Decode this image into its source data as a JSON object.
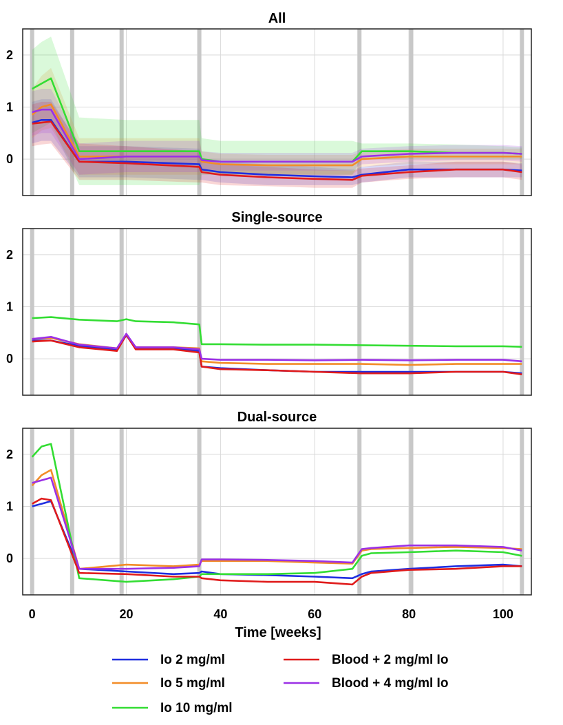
{
  "chart_data": {
    "type": "line",
    "xlabel": "Time [weeks]",
    "xlim": [
      -2,
      106
    ],
    "xticks": [
      0,
      20,
      40,
      60,
      80,
      100
    ],
    "grid": true,
    "legend": "bottom",
    "vertical_markers": [
      0,
      8.5,
      19,
      35.5,
      69.5,
      80.5,
      104
    ],
    "series_meta": [
      {
        "name": "Io 2 mg/ml",
        "color": "#1f2ee0"
      },
      {
        "name": "Io 5 mg/ml",
        "color": "#f28c28"
      },
      {
        "name": "Io 10 mg/ml",
        "color": "#33dd33"
      },
      {
        "name": "Blood + 2 mg/ml Io",
        "color": "#e01b1b"
      },
      {
        "name": "Blood + 4 mg/ml Io",
        "color": "#9b30e6"
      }
    ],
    "panels": [
      {
        "title": "All",
        "ylim": [
          -0.7,
          2.5
        ],
        "yticks": [
          0,
          1,
          2
        ],
        "series": [
          {
            "name": "Io 2 mg/ml",
            "x": [
              0,
              2,
              4,
              10,
              20,
              35.5,
              36,
              40,
              50,
              60,
              68,
              70,
              80,
              90,
              100,
              104
            ],
            "values": [
              0.7,
              0.75,
              0.75,
              -0.05,
              -0.05,
              -0.1,
              -0.2,
              -0.25,
              -0.3,
              -0.33,
              -0.35,
              -0.3,
              -0.2,
              -0.2,
              -0.2,
              -0.22
            ],
            "lower": [
              0.3,
              0.35,
              0.35,
              -0.35,
              -0.35,
              -0.4,
              -0.4,
              -0.45,
              -0.5,
              -0.5,
              -0.5,
              -0.45,
              -0.35,
              -0.35,
              -0.35,
              -0.35
            ],
            "upper": [
              1.1,
              1.15,
              1.15,
              0.25,
              0.25,
              0.2,
              0.0,
              -0.05,
              -0.1,
              -0.15,
              -0.2,
              -0.15,
              -0.05,
              -0.05,
              -0.05,
              -0.08
            ]
          },
          {
            "name": "Io 5 mg/ml",
            "x": [
              0,
              2,
              4,
              10,
              20,
              35.5,
              36,
              40,
              50,
              60,
              68,
              70,
              80,
              90,
              100,
              104
            ],
            "values": [
              0.85,
              1.0,
              1.05,
              0.05,
              0.05,
              0.05,
              -0.05,
              -0.1,
              -0.12,
              -0.12,
              -0.12,
              0.0,
              0.05,
              0.05,
              0.05,
              0.05
            ],
            "lower": [
              0.4,
              0.55,
              0.6,
              -0.3,
              -0.3,
              -0.3,
              -0.25,
              -0.3,
              -0.3,
              -0.3,
              -0.3,
              -0.15,
              -0.1,
              -0.1,
              -0.1,
              -0.1
            ],
            "upper": [
              1.35,
              1.6,
              1.75,
              0.4,
              0.4,
              0.4,
              0.15,
              0.1,
              0.08,
              0.08,
              0.08,
              0.15,
              0.2,
              0.2,
              0.2,
              0.2
            ]
          },
          {
            "name": "Io 10 mg/ml",
            "x": [
              0,
              2,
              4,
              10,
              20,
              35.5,
              36,
              40,
              50,
              60,
              68,
              70,
              80,
              90,
              100,
              104
            ],
            "values": [
              1.35,
              1.45,
              1.55,
              0.15,
              0.15,
              0.15,
              0.0,
              -0.05,
              -0.05,
              -0.05,
              -0.05,
              0.15,
              0.15,
              0.12,
              0.12,
              0.1
            ],
            "lower": [
              0.5,
              0.6,
              0.7,
              -0.5,
              -0.5,
              -0.5,
              -0.3,
              -0.3,
              -0.3,
              -0.3,
              -0.3,
              0.0,
              0.0,
              0.0,
              0.0,
              0.0
            ],
            "upper": [
              2.1,
              2.25,
              2.35,
              0.8,
              0.75,
              0.75,
              0.4,
              0.35,
              0.35,
              0.35,
              0.35,
              0.3,
              0.3,
              0.28,
              0.25,
              0.22
            ]
          },
          {
            "name": "Blood + 2 mg/ml Io",
            "x": [
              0,
              2,
              4,
              10,
              20,
              35.5,
              36,
              40,
              50,
              60,
              68,
              70,
              80,
              90,
              100,
              104
            ],
            "values": [
              0.68,
              0.7,
              0.72,
              -0.05,
              -0.08,
              -0.15,
              -0.25,
              -0.3,
              -0.35,
              -0.38,
              -0.4,
              -0.32,
              -0.25,
              -0.2,
              -0.2,
              -0.25
            ],
            "lower": [
              0.25,
              0.28,
              0.3,
              -0.4,
              -0.4,
              -0.45,
              -0.45,
              -0.5,
              -0.52,
              -0.55,
              -0.55,
              -0.45,
              -0.38,
              -0.35,
              -0.35,
              -0.4
            ],
            "upper": [
              1.05,
              1.1,
              1.1,
              0.3,
              0.25,
              0.15,
              -0.05,
              -0.1,
              -0.15,
              -0.2,
              -0.22,
              -0.18,
              -0.12,
              -0.05,
              -0.05,
              -0.1
            ]
          },
          {
            "name": "Blood + 4 mg/ml Io",
            "x": [
              0,
              2,
              4,
              10,
              20,
              35.5,
              36,
              40,
              50,
              60,
              68,
              70,
              80,
              90,
              100,
              104
            ],
            "values": [
              0.9,
              0.95,
              0.95,
              0.0,
              0.05,
              0.05,
              -0.02,
              -0.05,
              -0.05,
              -0.05,
              -0.05,
              0.05,
              0.1,
              0.12,
              0.12,
              0.1
            ],
            "lower": [
              0.45,
              0.5,
              0.5,
              -0.3,
              -0.25,
              -0.25,
              -0.2,
              -0.22,
              -0.22,
              -0.22,
              -0.22,
              -0.1,
              -0.05,
              -0.03,
              -0.03,
              -0.05
            ],
            "upper": [
              1.3,
              1.35,
              1.35,
              0.3,
              0.35,
              0.35,
              0.15,
              0.12,
              0.12,
              0.12,
              0.12,
              0.2,
              0.25,
              0.27,
              0.27,
              0.25
            ]
          }
        ]
      },
      {
        "title": "Single-source",
        "ylim": [
          -0.7,
          2.5
        ],
        "yticks": [
          0,
          1,
          2
        ],
        "series": [
          {
            "name": "Io 2 mg/ml",
            "x": [
              0,
              4,
              10,
              18,
              20,
              22,
              30,
              35.5,
              36,
              40,
              50,
              60,
              70,
              80,
              90,
              100,
              104
            ],
            "values": [
              0.35,
              0.35,
              0.25,
              0.18,
              0.45,
              0.2,
              0.2,
              0.15,
              -0.15,
              -0.18,
              -0.22,
              -0.25,
              -0.25,
              -0.25,
              -0.25,
              -0.25,
              -0.28
            ]
          },
          {
            "name": "Io 5 mg/ml",
            "x": [
              0,
              4,
              10,
              18,
              20,
              22,
              30,
              35.5,
              36,
              40,
              50,
              60,
              70,
              80,
              90,
              100,
              104
            ],
            "values": [
              0.38,
              0.4,
              0.28,
              0.2,
              0.47,
              0.22,
              0.22,
              0.2,
              -0.05,
              -0.08,
              -0.1,
              -0.1,
              -0.1,
              -0.12,
              -0.1,
              -0.1,
              -0.1
            ]
          },
          {
            "name": "Io 10 mg/ml",
            "x": [
              0,
              4,
              10,
              18,
              20,
              22,
              30,
              35.5,
              36,
              40,
              50,
              60,
              70,
              80,
              90,
              100,
              104
            ],
            "values": [
              0.78,
              0.8,
              0.75,
              0.72,
              0.76,
              0.72,
              0.7,
              0.66,
              0.28,
              0.28,
              0.27,
              0.27,
              0.26,
              0.25,
              0.24,
              0.24,
              0.23
            ]
          },
          {
            "name": "Blood + 2 mg/ml Io",
            "x": [
              0,
              4,
              10,
              18,
              20,
              22,
              30,
              35.5,
              36,
              40,
              50,
              60,
              70,
              80,
              90,
              100,
              104
            ],
            "values": [
              0.33,
              0.35,
              0.22,
              0.15,
              0.46,
              0.18,
              0.18,
              0.12,
              -0.15,
              -0.2,
              -0.22,
              -0.25,
              -0.28,
              -0.28,
              -0.25,
              -0.25,
              -0.3
            ]
          },
          {
            "name": "Blood + 4 mg/ml Io",
            "x": [
              0,
              4,
              10,
              18,
              20,
              22,
              30,
              35.5,
              36,
              40,
              50,
              60,
              70,
              80,
              90,
              100,
              104
            ],
            "values": [
              0.38,
              0.42,
              0.27,
              0.2,
              0.48,
              0.22,
              0.22,
              0.18,
              0.0,
              -0.02,
              -0.02,
              -0.03,
              -0.02,
              -0.03,
              -0.02,
              -0.02,
              -0.05
            ]
          }
        ]
      },
      {
        "title": "Dual-source",
        "ylim": [
          -0.7,
          2.5
        ],
        "yticks": [
          0,
          1,
          2
        ],
        "series": [
          {
            "name": "Io 2 mg/ml",
            "x": [
              0,
              2,
              4,
              10,
              20,
              30,
              35.5,
              36,
              40,
              50,
              60,
              68,
              70,
              72,
              80,
              90,
              100,
              104
            ],
            "values": [
              1.0,
              1.05,
              1.1,
              -0.2,
              -0.25,
              -0.3,
              -0.28,
              -0.25,
              -0.3,
              -0.32,
              -0.35,
              -0.38,
              -0.3,
              -0.25,
              -0.2,
              -0.15,
              -0.12,
              -0.15
            ]
          },
          {
            "name": "Io 5 mg/ml",
            "x": [
              0,
              2,
              4,
              10,
              20,
              30,
              35.5,
              36,
              40,
              50,
              60,
              68,
              70,
              72,
              80,
              90,
              100,
              104
            ],
            "values": [
              1.4,
              1.6,
              1.7,
              -0.2,
              -0.12,
              -0.15,
              -0.12,
              -0.05,
              -0.05,
              -0.05,
              -0.08,
              -0.1,
              0.15,
              0.18,
              0.2,
              0.22,
              0.2,
              0.18
            ]
          },
          {
            "name": "Io 10 mg/ml",
            "x": [
              0,
              2,
              4,
              10,
              20,
              30,
              35.5,
              36,
              40,
              50,
              60,
              68,
              70,
              72,
              80,
              90,
              100,
              104
            ],
            "values": [
              1.95,
              2.15,
              2.2,
              -0.38,
              -0.45,
              -0.4,
              -0.35,
              -0.3,
              -0.3,
              -0.3,
              -0.28,
              -0.2,
              0.05,
              0.1,
              0.12,
              0.15,
              0.12,
              0.05
            ]
          },
          {
            "name": "Blood + 2 mg/ml Io",
            "x": [
              0,
              2,
              4,
              10,
              20,
              30,
              35.5,
              36,
              40,
              50,
              60,
              68,
              70,
              72,
              80,
              90,
              100,
              104
            ],
            "values": [
              1.05,
              1.15,
              1.12,
              -0.28,
              -0.3,
              -0.35,
              -0.35,
              -0.38,
              -0.42,
              -0.45,
              -0.45,
              -0.5,
              -0.35,
              -0.28,
              -0.22,
              -0.2,
              -0.15,
              -0.15
            ]
          },
          {
            "name": "Blood + 4 mg/ml Io",
            "x": [
              0,
              2,
              4,
              10,
              20,
              30,
              35.5,
              36,
              40,
              50,
              60,
              68,
              70,
              72,
              80,
              90,
              100,
              104
            ],
            "values": [
              1.45,
              1.5,
              1.55,
              -0.2,
              -0.2,
              -0.18,
              -0.15,
              -0.02,
              -0.02,
              -0.03,
              -0.05,
              -0.08,
              0.18,
              0.2,
              0.25,
              0.25,
              0.22,
              0.15
            ]
          }
        ]
      }
    ]
  }
}
